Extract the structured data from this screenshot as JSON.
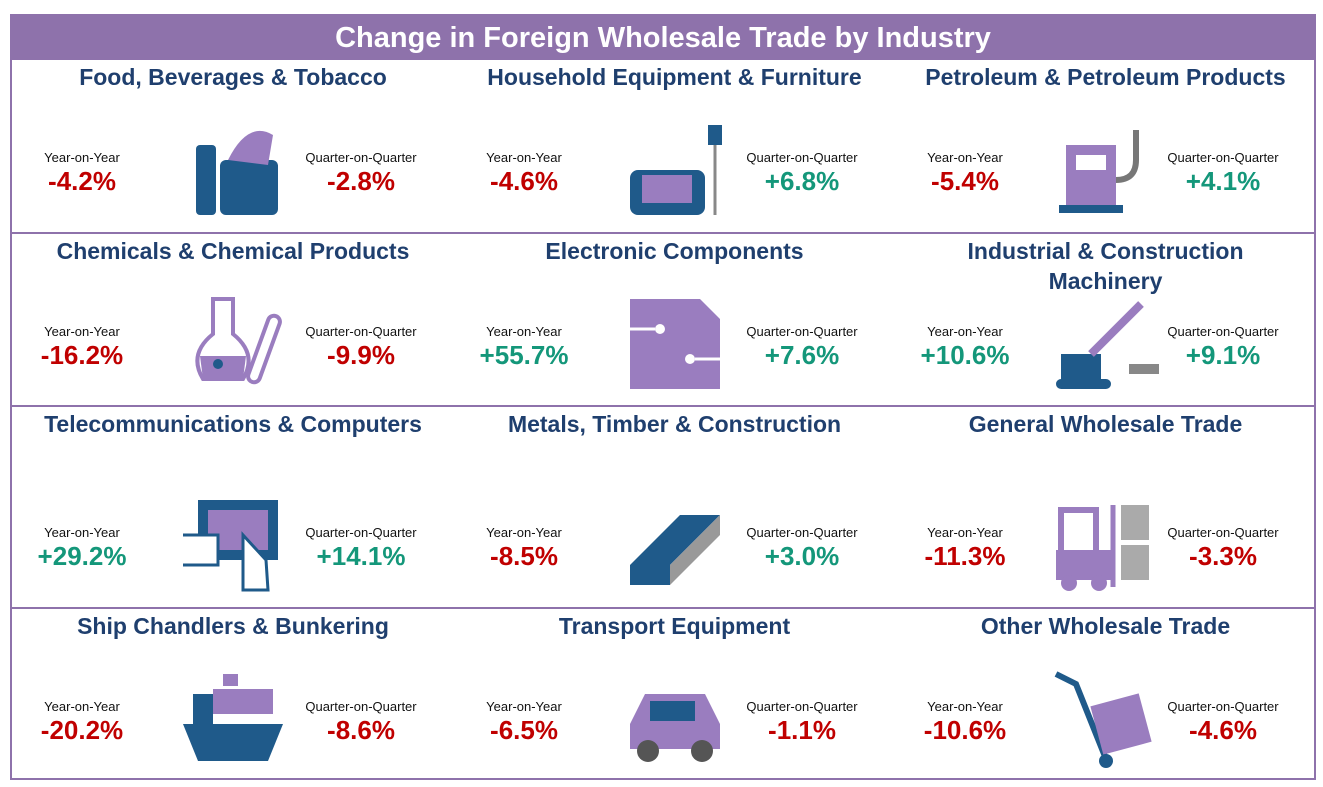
{
  "title": "Change in Foreign Wholesale Trade by Industry",
  "industries": [
    {
      "name": "Food, Beverages & Tobacco",
      "yoy_label": "Year-on-Year",
      "yoy": "-4.2%",
      "qoq_label": "Quarter-on-Quarter",
      "qoq": "-2.8%"
    },
    {
      "name": "Household Equipment & Furniture",
      "yoy_label": "Year-on-Year",
      "yoy": "-4.6%",
      "qoq_label": "Quarter-on-Quarter",
      "qoq": "+6.8%"
    },
    {
      "name": "Petroleum & Petroleum Products",
      "yoy_label": "Year-on-Year",
      "yoy": "-5.4%",
      "qoq_label": "Quarter-on-Quarter",
      "qoq": "+4.1%"
    },
    {
      "name": "Chemicals & Chemical Products",
      "yoy_label": "Year-on-Year",
      "yoy": "-16.2%",
      "qoq_label": "Quarter-on-Quarter",
      "qoq": "-9.9%"
    },
    {
      "name": "Electronic Components",
      "yoy_label": "Year-on-Year",
      "yoy": "+55.7%",
      "qoq_label": "Quarter-on-Quarter",
      "qoq": "+7.6%"
    },
    {
      "name": "Industrial & Construction Machinery",
      "yoy_label": "Year-on-Year",
      "yoy": "+10.6%",
      "qoq_label": "Quarter-on-Quarter",
      "qoq": "+9.1%"
    },
    {
      "name": "Telecommunications & Computers",
      "yoy_label": "Year-on-Year",
      "yoy": "+29.2%",
      "qoq_label": "Quarter-on-Quarter",
      "qoq": "+14.1%"
    },
    {
      "name": "Metals, Timber & Construction",
      "yoy_label": "Year-on-Year",
      "yoy": "-8.5%",
      "qoq_label": "Quarter-on-Quarter",
      "qoq": "+3.0%"
    },
    {
      "name": "General Wholesale Trade",
      "yoy_label": "Year-on-Year",
      "yoy": "-11.3%",
      "qoq_label": "Quarter-on-Quarter",
      "qoq": "-3.3%"
    },
    {
      "name": "Ship Chandlers & Bunkering",
      "yoy_label": "Year-on-Year",
      "yoy": "-20.2%",
      "qoq_label": "Quarter-on-Quarter",
      "qoq": "-8.6%"
    },
    {
      "name": "Transport Equipment",
      "yoy_label": "Year-on-Year",
      "yoy": "-6.5%",
      "qoq_label": "Quarter-on-Quarter",
      "qoq": "-1.1%"
    },
    {
      "name": "Other Wholesale Trade",
      "yoy_label": "Year-on-Year",
      "yoy": "-10.6%",
      "qoq_label": "Quarter-on-Quarter",
      "qoq": "-4.6%"
    }
  ]
}
